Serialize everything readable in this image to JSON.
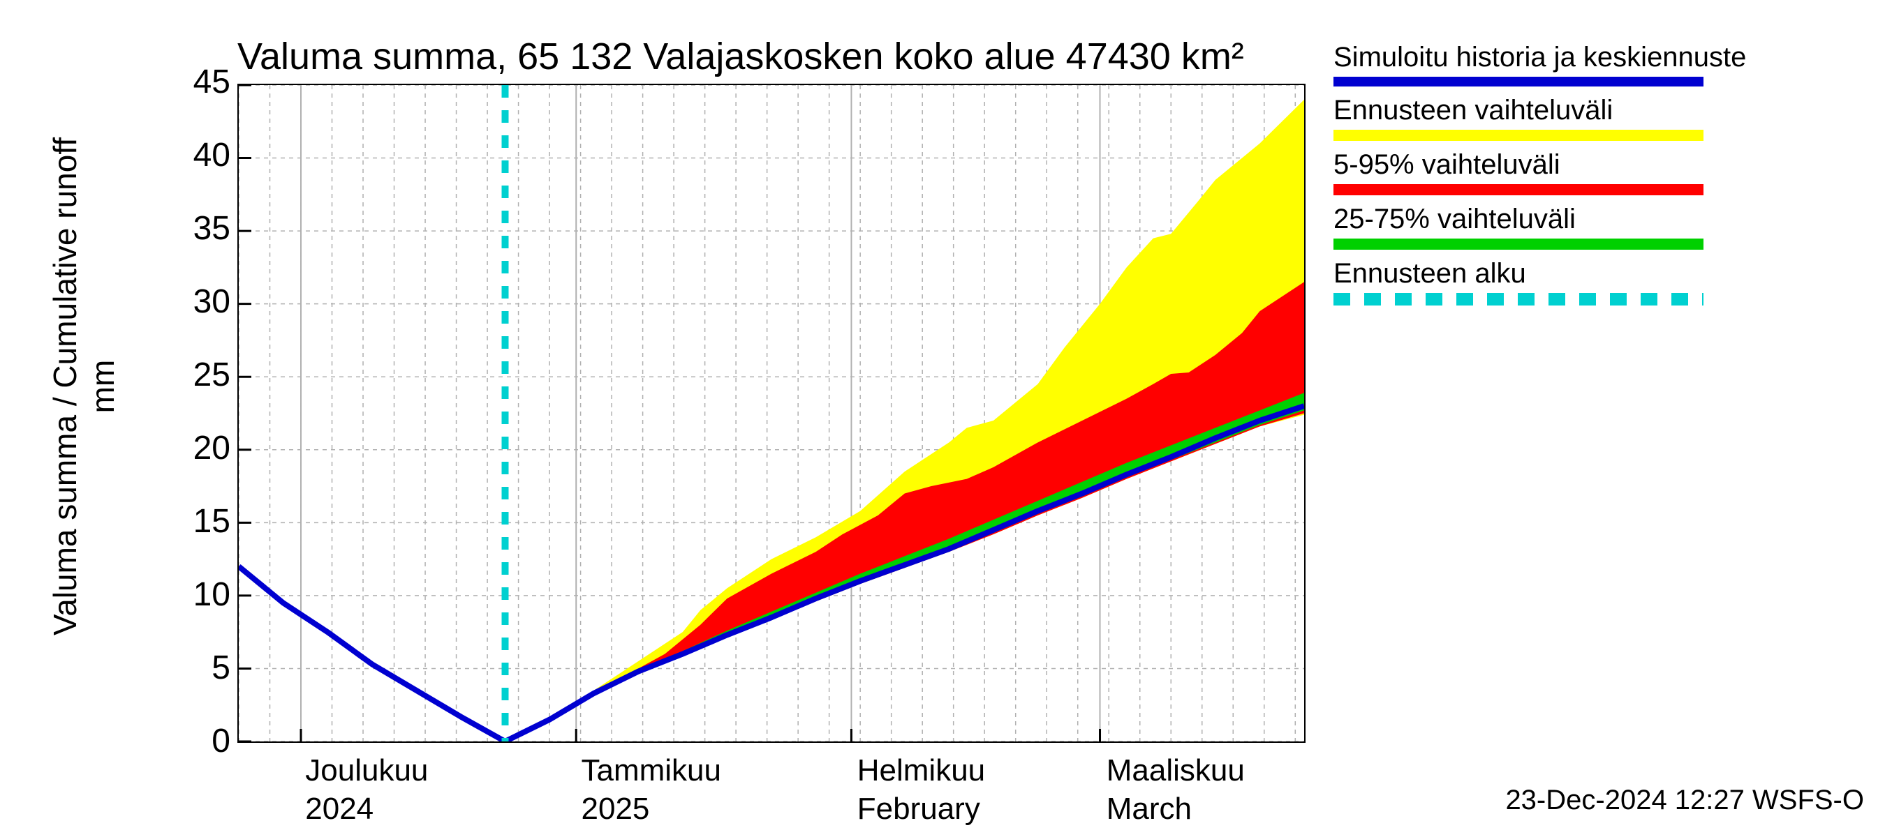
{
  "chart": {
    "type": "area",
    "title": "Valuma summa, 65 132 Valajaskosken koko alue 47430 km²",
    "ylabel": "Valuma summa / Cumulative runoff    mm",
    "background_color": "#ffffff",
    "grid_color": "#b0b0b0",
    "axis_color": "#000000",
    "title_fontsize": 54,
    "label_fontsize": 46,
    "tick_fontsize": 48,
    "plot": {
      "x_min": 0,
      "x_max": 120,
      "y_min": 0,
      "y_max": 45,
      "y_ticks": [
        0,
        5,
        10,
        15,
        20,
        25,
        30,
        35,
        40,
        45
      ],
      "x_major": [
        {
          "x": 7,
          "label": "Joulukuu",
          "sub": "2024"
        },
        {
          "x": 38,
          "label": "Tammikuu",
          "sub": "2025"
        },
        {
          "x": 69,
          "label": "Helmikuu",
          "sub": "February"
        },
        {
          "x": 97,
          "label": "Maaliskuu",
          "sub": "March"
        }
      ],
      "x_minor_step": 3.5,
      "forecast_start_x": 30
    },
    "series": {
      "history_and_mean": {
        "color": "#0000d0",
        "width": 8,
        "points": [
          [
            0,
            12
          ],
          [
            5,
            9.5
          ],
          [
            10,
            7.5
          ],
          [
            15,
            5.3
          ],
          [
            20,
            3.5
          ],
          [
            25,
            1.7
          ],
          [
            30,
            0
          ],
          [
            35,
            1.5
          ],
          [
            40,
            3.3
          ],
          [
            45,
            4.8
          ],
          [
            50,
            6
          ],
          [
            55,
            7.3
          ],
          [
            60,
            8.5
          ],
          [
            65,
            9.8
          ],
          [
            70,
            11
          ],
          [
            75,
            12.1
          ],
          [
            80,
            13.2
          ],
          [
            85,
            14.5
          ],
          [
            90,
            15.8
          ],
          [
            95,
            17
          ],
          [
            100,
            18.3
          ],
          [
            105,
            19.5
          ],
          [
            110,
            20.8
          ],
          [
            115,
            22
          ],
          [
            120,
            23
          ]
        ]
      },
      "band_full": {
        "color": "#ffff00",
        "upper": [
          [
            30,
            0
          ],
          [
            35,
            1.6
          ],
          [
            40,
            3.5
          ],
          [
            45,
            5.5
          ],
          [
            50,
            7.5
          ],
          [
            52,
            9
          ],
          [
            55,
            10.5
          ],
          [
            60,
            12.5
          ],
          [
            65,
            14
          ],
          [
            70,
            15.8
          ],
          [
            75,
            18.5
          ],
          [
            80,
            20.5
          ],
          [
            82,
            21.5
          ],
          [
            85,
            22
          ],
          [
            90,
            24.5
          ],
          [
            93,
            27
          ],
          [
            97,
            30
          ],
          [
            100,
            32.5
          ],
          [
            103,
            34.5
          ],
          [
            105,
            34.8
          ],
          [
            108,
            37
          ],
          [
            110,
            38.5
          ],
          [
            115,
            41
          ],
          [
            120,
            44
          ]
        ],
        "lower": [
          [
            30,
            0
          ],
          [
            35,
            1.5
          ],
          [
            40,
            3.3
          ],
          [
            45,
            4.8
          ],
          [
            50,
            6
          ],
          [
            55,
            7.3
          ],
          [
            60,
            8.4
          ],
          [
            65,
            9.6
          ],
          [
            70,
            10.8
          ],
          [
            75,
            11.9
          ],
          [
            80,
            13.0
          ],
          [
            85,
            14.2
          ],
          [
            90,
            15.5
          ],
          [
            95,
            16.7
          ],
          [
            100,
            18.0
          ],
          [
            105,
            19.2
          ],
          [
            110,
            20.4
          ],
          [
            115,
            21.6
          ],
          [
            120,
            22.4
          ]
        ]
      },
      "band_5_95": {
        "color": "#ff0000",
        "upper": [
          [
            30,
            0
          ],
          [
            35,
            1.6
          ],
          [
            40,
            3.4
          ],
          [
            45,
            5.0
          ],
          [
            48,
            6.0
          ],
          [
            52,
            8.0
          ],
          [
            55,
            9.8
          ],
          [
            60,
            11.5
          ],
          [
            65,
            13
          ],
          [
            68,
            14.2
          ],
          [
            72,
            15.5
          ],
          [
            75,
            17
          ],
          [
            78,
            17.5
          ],
          [
            82,
            18
          ],
          [
            85,
            18.8
          ],
          [
            90,
            20.5
          ],
          [
            95,
            22
          ],
          [
            100,
            23.5
          ],
          [
            103,
            24.5
          ],
          [
            105,
            25.2
          ],
          [
            107,
            25.3
          ],
          [
            110,
            26.5
          ],
          [
            113,
            28
          ],
          [
            115,
            29.5
          ],
          [
            120,
            31.5
          ]
        ],
        "lower": [
          [
            30,
            0
          ],
          [
            35,
            1.5
          ],
          [
            40,
            3.3
          ],
          [
            45,
            4.8
          ],
          [
            50,
            6
          ],
          [
            55,
            7.3
          ],
          [
            60,
            8.4
          ],
          [
            65,
            9.6
          ],
          [
            70,
            10.8
          ],
          [
            75,
            11.9
          ],
          [
            80,
            13.0
          ],
          [
            85,
            14.2
          ],
          [
            90,
            15.5
          ],
          [
            95,
            16.7
          ],
          [
            100,
            18.0
          ],
          [
            105,
            19.2
          ],
          [
            110,
            20.4
          ],
          [
            115,
            21.6
          ],
          [
            120,
            22.5
          ]
        ]
      },
      "band_25_75": {
        "color": "#00d000",
        "upper": [
          [
            30,
            0
          ],
          [
            35,
            1.6
          ],
          [
            40,
            3.4
          ],
          [
            45,
            4.9
          ],
          [
            50,
            6.2
          ],
          [
            55,
            7.6
          ],
          [
            60,
            8.9
          ],
          [
            65,
            10.2
          ],
          [
            70,
            11.5
          ],
          [
            75,
            12.7
          ],
          [
            80,
            13.9
          ],
          [
            85,
            15.2
          ],
          [
            90,
            16.5
          ],
          [
            95,
            17.8
          ],
          [
            100,
            19.1
          ],
          [
            105,
            20.3
          ],
          [
            110,
            21.5
          ],
          [
            115,
            22.7
          ],
          [
            120,
            23.9
          ]
        ],
        "lower": [
          [
            30,
            0
          ],
          [
            35,
            1.5
          ],
          [
            40,
            3.3
          ],
          [
            45,
            4.8
          ],
          [
            50,
            6
          ],
          [
            55,
            7.3
          ],
          [
            60,
            8.5
          ],
          [
            65,
            9.7
          ],
          [
            70,
            10.9
          ],
          [
            75,
            12.0
          ],
          [
            80,
            13.1
          ],
          [
            85,
            14.3
          ],
          [
            90,
            15.6
          ],
          [
            95,
            16.8
          ],
          [
            100,
            18.1
          ],
          [
            105,
            19.3
          ],
          [
            110,
            20.5
          ],
          [
            115,
            21.7
          ],
          [
            120,
            22.7
          ]
        ]
      },
      "forecast_start": {
        "color": "#00d0d0",
        "width": 10,
        "dash": [
          18,
          18
        ]
      }
    },
    "legend": {
      "entries": [
        {
          "label": "Simuloitu historia ja keskiennuste",
          "type": "line",
          "color": "#0000d0"
        },
        {
          "label": "Ennusteen vaihteluväli",
          "type": "band",
          "color": "#ffff00"
        },
        {
          "label": "5-95% vaihteluväli",
          "type": "band",
          "color": "#ff0000"
        },
        {
          "label": "25-75% vaihteluväli",
          "type": "band",
          "color": "#00d000"
        },
        {
          "label": "Ennusteen alku",
          "type": "dash",
          "color": "#00d0d0"
        }
      ]
    },
    "footer": "23-Dec-2024 12:27 WSFS-O"
  }
}
